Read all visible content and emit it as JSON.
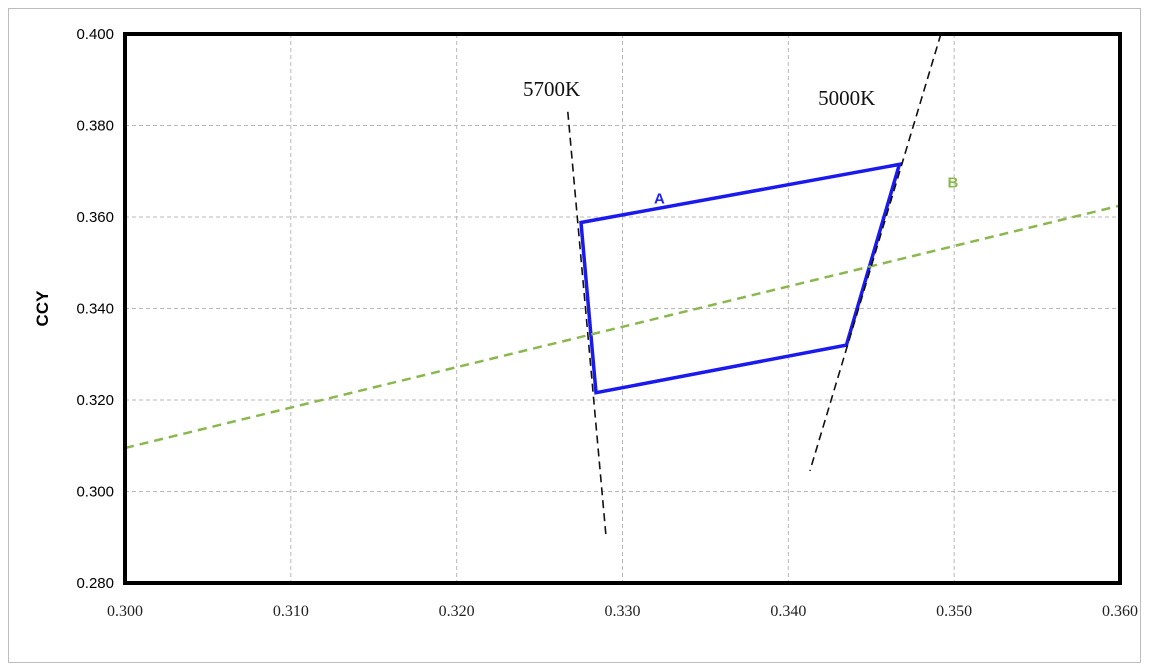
{
  "chart_data": {
    "type": "line",
    "title": "",
    "xlabel": "",
    "ylabel": "CCY",
    "xlim": [
      0.3,
      0.36
    ],
    "ylim": [
      0.28,
      0.4
    ],
    "x_ticks": [
      "0.300",
      "0.310",
      "0.320",
      "0.330",
      "0.340",
      "0.350",
      "0.360"
    ],
    "y_ticks": [
      "0.280",
      "0.300",
      "0.320",
      "0.340",
      "0.360",
      "0.380",
      "0.400"
    ],
    "grid": true,
    "series": [
      {
        "name": "A",
        "color": "#1a1aee",
        "style": "solid",
        "closed": true,
        "points": [
          [
            0.3275,
            0.3588
          ],
          [
            0.3467,
            0.3715
          ],
          [
            0.3435,
            0.332
          ],
          [
            0.3284,
            0.3216
          ]
        ]
      },
      {
        "name": "B",
        "color": "#8ab84e",
        "style": "dashed",
        "points": [
          [
            0.3,
            0.3095
          ],
          [
            0.36,
            0.3625
          ]
        ]
      },
      {
        "name": "5700K",
        "color": "#111111",
        "style": "dashed",
        "points": [
          [
            0.3267,
            0.383
          ],
          [
            0.329,
            0.2905
          ]
        ]
      },
      {
        "name": "5000K",
        "color": "#111111",
        "style": "dashed",
        "points": [
          [
            0.3492,
            0.4
          ],
          [
            0.3413,
            0.3045
          ]
        ]
      }
    ],
    "annotations": [
      {
        "text": "5700K",
        "x": 0.324,
        "y": 0.3865,
        "style": "ann"
      },
      {
        "text": "5000K",
        "x": 0.3418,
        "y": 0.3845,
        "style": "ann"
      },
      {
        "text": "A",
        "x": 0.3319,
        "y": 0.363,
        "style": "ann-a"
      },
      {
        "text": "B",
        "x": 0.3496,
        "y": 0.3665,
        "style": "ann-b"
      }
    ]
  }
}
